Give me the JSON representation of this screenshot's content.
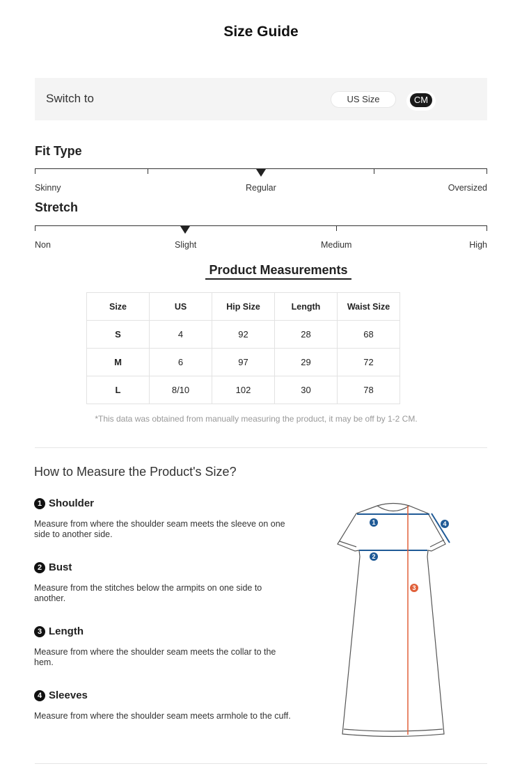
{
  "title": "Size Guide",
  "switch": {
    "label": "Switch to",
    "options": [
      "US Size",
      "CM"
    ],
    "selected": "CM"
  },
  "fit_type": {
    "title": "Fit Type",
    "labels": [
      "Skinny",
      "Regular",
      "Oversized"
    ],
    "selected": "Regular"
  },
  "stretch": {
    "title": "Stretch",
    "labels": [
      "Non",
      "Slight",
      "Medium",
      "High"
    ],
    "selected": "Slight"
  },
  "measurements": {
    "title": "Product Measurements",
    "headers": [
      "Size",
      "US",
      "Hip Size",
      "Length",
      "Waist Size"
    ],
    "rows": [
      [
        "S",
        "4",
        "92",
        "28",
        "68"
      ],
      [
        "M",
        "6",
        "97",
        "29",
        "72"
      ],
      [
        "L",
        "8/10",
        "102",
        "30",
        "78"
      ]
    ],
    "note": "*This data was obtained from manually measuring the product, it may be off by 1-2 CM."
  },
  "how": {
    "title": "How to Measure the Product's Size?",
    "items": [
      {
        "num": "1",
        "name": "Shoulder",
        "desc": "Measure from where the shoulder seam meets the sleeve on one side to another side."
      },
      {
        "num": "2",
        "name": "Bust",
        "desc": "Measure from the stitches below the armpits on one side to another."
      },
      {
        "num": "3",
        "name": "Length",
        "desc": "Measure from where the shoulder seam meets the collar to the hem."
      },
      {
        "num": "4",
        "name": "Sleeves",
        "desc": "Measure from where the shoulder seam meets armhole to the cuff."
      }
    ]
  },
  "colors": {
    "blue": "#1f5a96",
    "orange": "#e0603a"
  }
}
